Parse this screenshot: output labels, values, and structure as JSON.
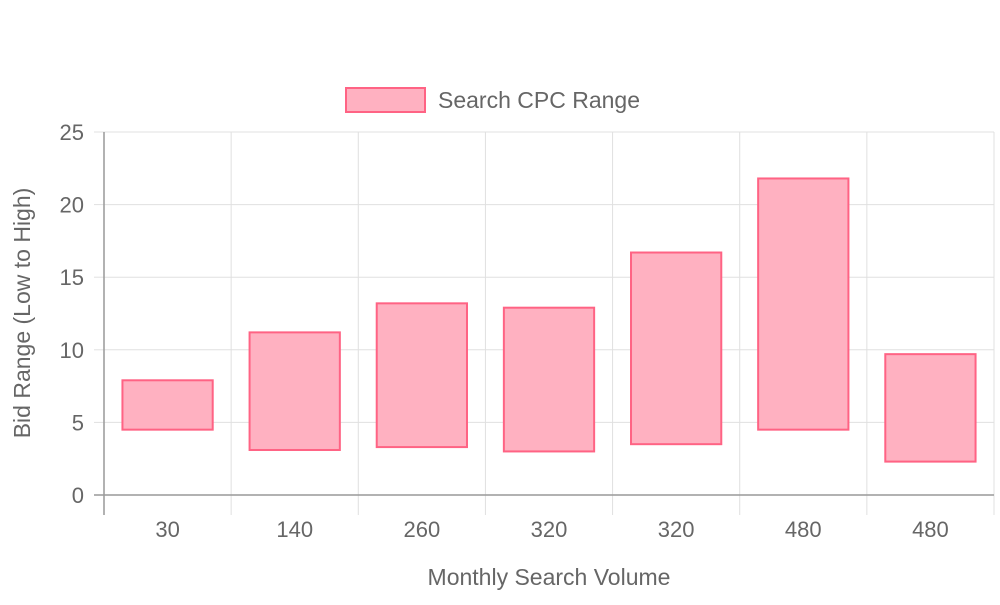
{
  "chart_data": {
    "type": "bar",
    "subtype": "floating-range",
    "legend": {
      "position": "top",
      "entries": [
        {
          "label": "Search CPC Range",
          "color": "#ff6384"
        }
      ]
    },
    "categories": [
      "30",
      "140",
      "260",
      "320",
      "320",
      "480",
      "480"
    ],
    "series": [
      {
        "name": "Search CPC Range",
        "ranges": [
          [
            4.5,
            7.9
          ],
          [
            3.1,
            11.2
          ],
          [
            3.3,
            13.2
          ],
          [
            3.0,
            12.9
          ],
          [
            3.5,
            16.7
          ],
          [
            4.5,
            21.8
          ],
          [
            2.3,
            9.7
          ]
        ]
      }
    ],
    "xlabel": "Monthly Search Volume",
    "ylabel": "Bid Range (Low to High)",
    "ylim": [
      0,
      25
    ],
    "yticks": [
      0,
      5,
      10,
      15,
      20,
      25
    ],
    "grid": true,
    "colors": {
      "bar_fill": "#ffb1c1",
      "bar_stroke": "#ff6384",
      "grid": "#e0e0e0",
      "axis": "#999999",
      "text": "#666666"
    }
  }
}
